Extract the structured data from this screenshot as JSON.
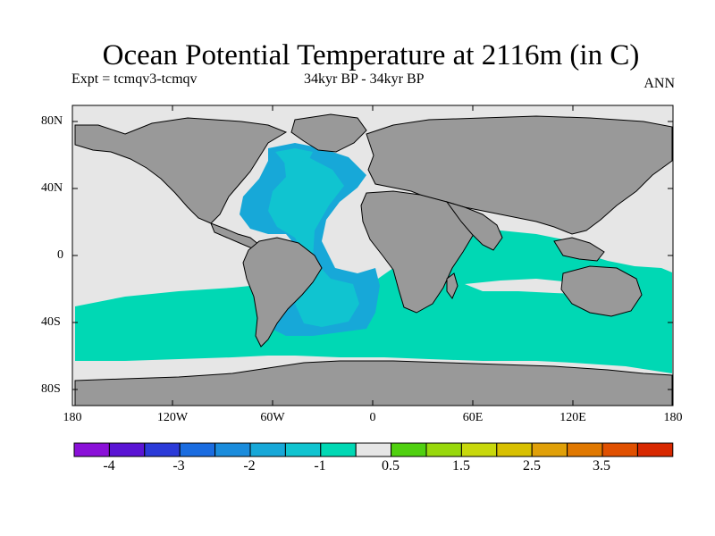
{
  "title": "Ocean Potential Temperature at 2116m (in C)",
  "subtitle_left": "Expt = tcmqv3-tcmqv",
  "subtitle_center": "34kyr BP - 34kyr BP",
  "subtitle_right": "ANN",
  "lat_labels": [
    "80N",
    "40N",
    "0",
    "40S",
    "80S"
  ],
  "lon_labels": [
    "180",
    "120W",
    "60W",
    "0",
    "60E",
    "120E",
    "180"
  ],
  "colorbar": {
    "labels": [
      "-4",
      "-3",
      "-2",
      "-1",
      "0.5",
      "1.5",
      "2.5",
      "3.5"
    ],
    "colors": [
      "#8a10d8",
      "#5a14d4",
      "#2b3ad8",
      "#1a6ce0",
      "#1a8cdc",
      "#17a8d8",
      "#10c4d0",
      "#00d8b4",
      "#e6e6e6",
      "#50d010",
      "#98d80c",
      "#c8d80c",
      "#d8c000",
      "#e0a008",
      "#e07800",
      "#e05000",
      "#d82800"
    ]
  },
  "map_colors": {
    "land": "#999999",
    "ocean_background": "#e6e6e6",
    "southern_ocean_band": "#00d8b4",
    "atlantic_deep": "#17a8d8",
    "atlantic_core": "#10b8d8",
    "indian_ocean": "#00d8b4"
  }
}
